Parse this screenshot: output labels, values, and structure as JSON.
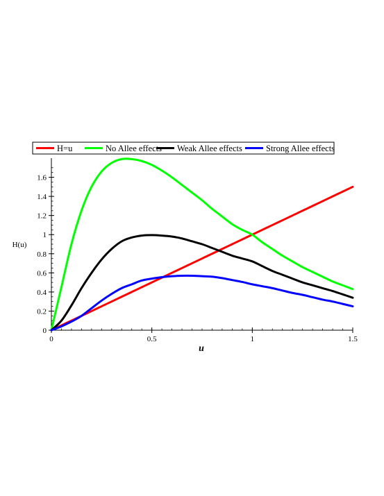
{
  "chart_data": {
    "type": "line",
    "title": "",
    "xlabel": "u",
    "ylabel": "H(u)",
    "xlim": [
      0,
      1.5
    ],
    "ylim": [
      0,
      1.8
    ],
    "xticks": [
      0,
      0.5,
      1,
      1.5
    ],
    "xtick_labels": [
      "0",
      "0.5",
      "1",
      "1.5"
    ],
    "yticks": [
      0,
      0.2,
      0.4,
      0.6,
      0.8,
      1,
      1.2,
      1.4,
      1.6
    ],
    "ytick_labels": [
      "0",
      "0.2",
      "0.4",
      "0.6",
      "0.8",
      "1",
      "1.2",
      "1.4",
      "1.6"
    ],
    "grid": false,
    "legend_position": "top",
    "x": [
      0,
      0.05,
      0.1,
      0.15,
      0.2,
      0.25,
      0.3,
      0.35,
      0.4,
      0.45,
      0.5,
      0.55,
      0.6,
      0.65,
      0.7,
      0.75,
      0.8,
      0.85,
      0.9,
      0.95,
      1.0,
      1.05,
      1.1,
      1.15,
      1.2,
      1.25,
      1.3,
      1.35,
      1.4,
      1.45,
      1.5
    ],
    "series": [
      {
        "name": "H=u",
        "color": "#ff0000",
        "values": [
          0,
          0.05,
          0.1,
          0.15,
          0.2,
          0.25,
          0.3,
          0.35,
          0.4,
          0.45,
          0.5,
          0.55,
          0.6,
          0.65,
          0.7,
          0.75,
          0.8,
          0.85,
          0.9,
          0.95,
          1.0,
          1.05,
          1.1,
          1.15,
          1.2,
          1.25,
          1.3,
          1.35,
          1.4,
          1.45,
          1.5
        ]
      },
      {
        "name": "No Allee effects",
        "color": "#00ff00",
        "values": [
          0,
          0.45,
          0.9,
          1.25,
          1.5,
          1.66,
          1.75,
          1.79,
          1.79,
          1.77,
          1.73,
          1.67,
          1.6,
          1.52,
          1.44,
          1.36,
          1.27,
          1.19,
          1.11,
          1.05,
          1.0,
          0.92,
          0.85,
          0.78,
          0.72,
          0.66,
          0.61,
          0.56,
          0.51,
          0.47,
          0.43
        ]
      },
      {
        "name": "Weak Allee effects",
        "color": "#000000",
        "values": [
          0,
          0.1,
          0.26,
          0.44,
          0.6,
          0.74,
          0.85,
          0.93,
          0.97,
          0.99,
          0.995,
          0.99,
          0.98,
          0.96,
          0.93,
          0.9,
          0.86,
          0.82,
          0.78,
          0.75,
          0.72,
          0.67,
          0.62,
          0.58,
          0.54,
          0.5,
          0.47,
          0.44,
          0.41,
          0.375,
          0.34
        ]
      },
      {
        "name": "Strong Allee effects",
        "color": "#0000ff",
        "values": [
          0,
          0.04,
          0.09,
          0.15,
          0.23,
          0.31,
          0.38,
          0.44,
          0.48,
          0.52,
          0.54,
          0.555,
          0.565,
          0.57,
          0.57,
          0.565,
          0.56,
          0.545,
          0.525,
          0.505,
          0.48,
          0.46,
          0.44,
          0.415,
          0.39,
          0.37,
          0.345,
          0.32,
          0.3,
          0.275,
          0.25
        ]
      }
    ]
  }
}
